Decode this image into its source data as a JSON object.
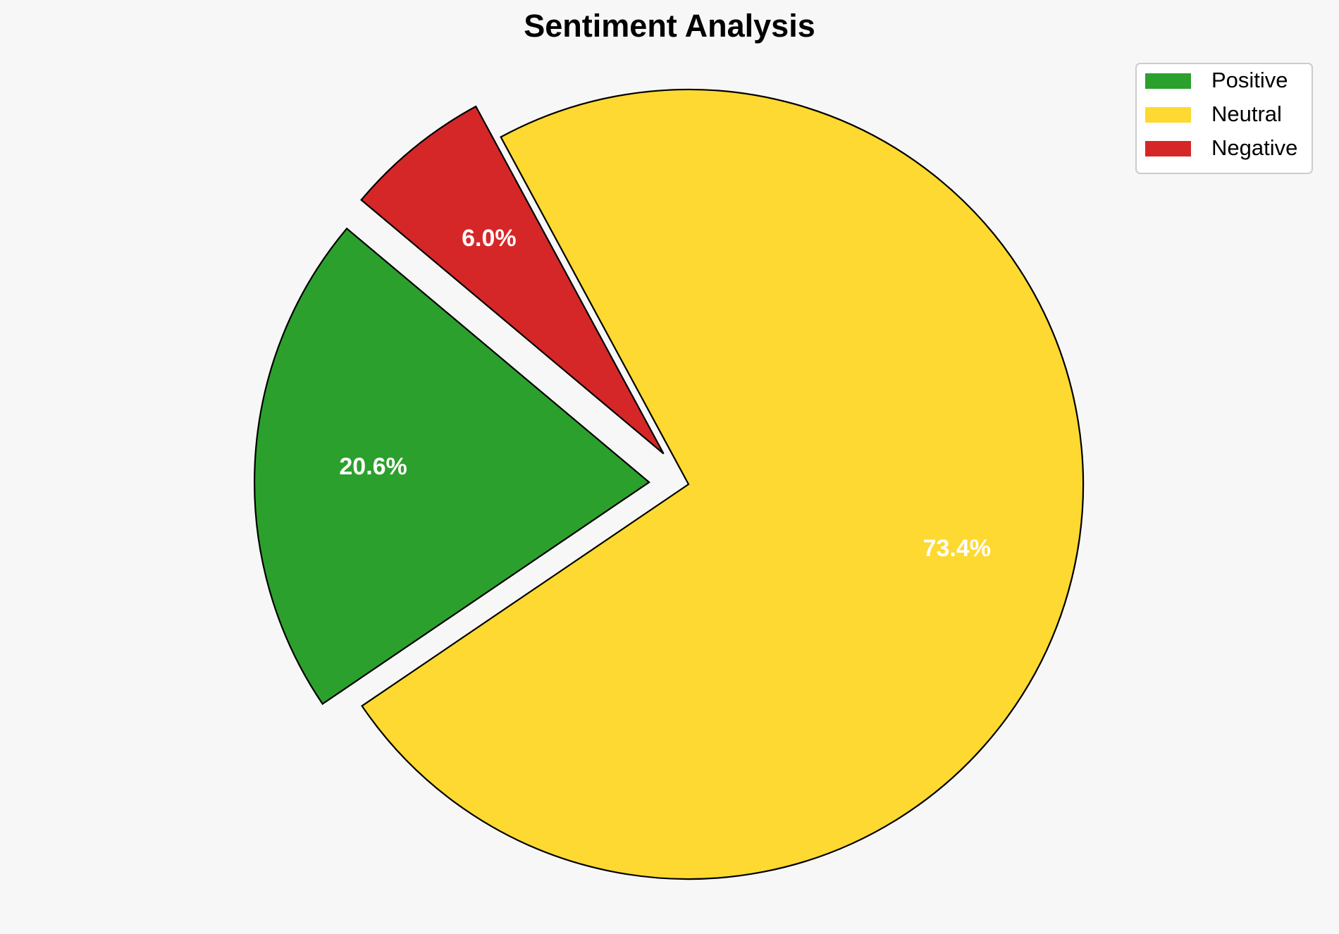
{
  "chart_data": {
    "type": "pie",
    "title": "Sentiment Analysis",
    "categories": [
      "Positive",
      "Neutral",
      "Negative"
    ],
    "values": [
      20.6,
      73.4,
      6.0
    ],
    "value_labels": [
      "20.6%",
      "73.4%",
      "6.0%"
    ],
    "colors": [
      "#2ca02c",
      "#fdd931",
      "#d62728"
    ],
    "explode": [
      0.1,
      0,
      0.1
    ],
    "startangle": 140,
    "legend": "upper right"
  }
}
